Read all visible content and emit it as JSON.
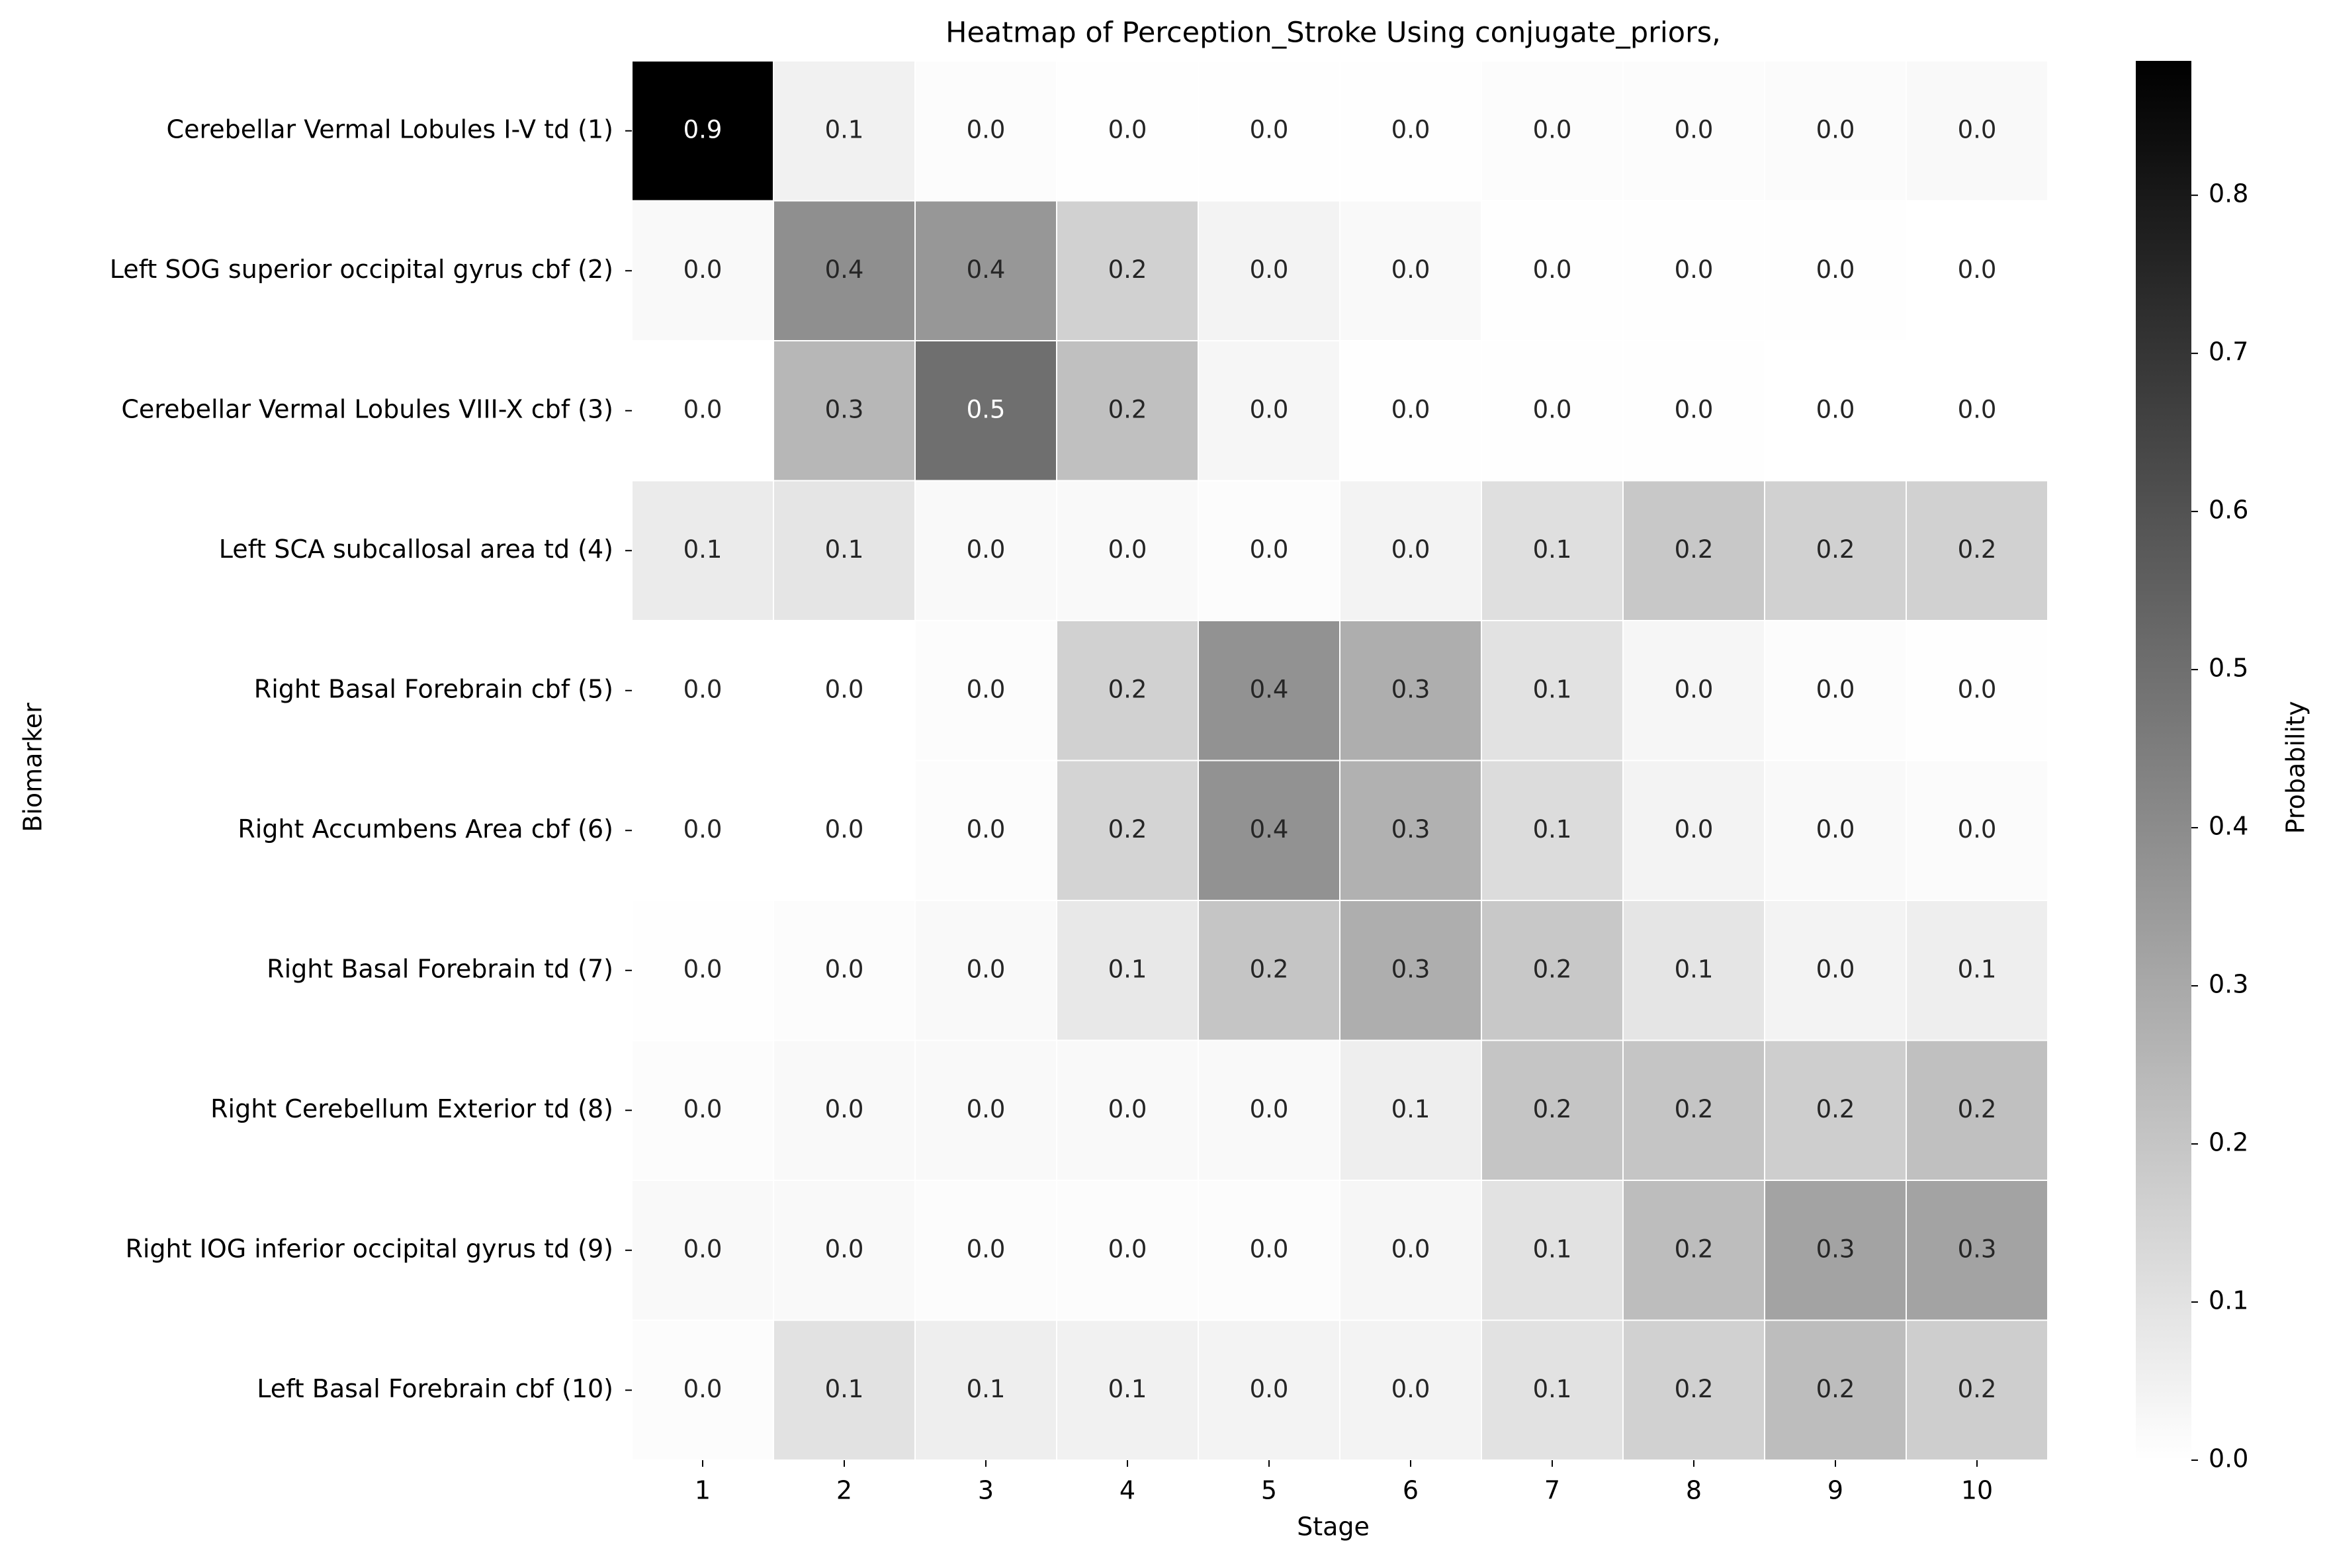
{
  "chart_data": {
    "type": "heatmap",
    "title": "Heatmap of Perception_Stroke Using conjugate_priors,",
    "xlabel": "Stage",
    "ylabel": "Biomarker",
    "colorbar_label": "Probability",
    "x_categories": [
      "1",
      "2",
      "3",
      "4",
      "5",
      "6",
      "7",
      "8",
      "9",
      "10"
    ],
    "y_categories": [
      "Cerebellar Vermal Lobules I-V td (1)",
      "Left SOG superior occipital gyrus cbf (2)",
      "Cerebellar Vermal Lobules VIII-X cbf (3)",
      "Left SCA subcallosal area td (4)",
      "Right Basal Forebrain cbf (5)",
      "Right Accumbens Area cbf (6)",
      "Right Basal Forebrain td (7)",
      "Right Cerebellum Exterior td (8)",
      "Right IOG inferior occipital gyrus td (9)",
      "Left Basal Forebrain cbf (10)"
    ],
    "values": [
      [
        0.885,
        0.05,
        0.01,
        0.005,
        0.004,
        0.005,
        0.01,
        0.01,
        0.015,
        0.02
      ],
      [
        0.02,
        0.39,
        0.36,
        0.16,
        0.04,
        0.02,
        0.005,
        0.003,
        0.002,
        0.001
      ],
      [
        0.0,
        0.25,
        0.5,
        0.22,
        0.03,
        0.005,
        0.003,
        0.002,
        0.001,
        0.001
      ],
      [
        0.07,
        0.09,
        0.02,
        0.02,
        0.01,
        0.04,
        0.11,
        0.19,
        0.16,
        0.16
      ],
      [
        0.0,
        0.0,
        0.01,
        0.16,
        0.38,
        0.28,
        0.1,
        0.03,
        0.01,
        0.005
      ],
      [
        0.0,
        0.0,
        0.01,
        0.15,
        0.38,
        0.27,
        0.12,
        0.04,
        0.02,
        0.015
      ],
      [
        0.005,
        0.01,
        0.02,
        0.08,
        0.2,
        0.28,
        0.19,
        0.09,
        0.04,
        0.06
      ],
      [
        0.01,
        0.02,
        0.02,
        0.02,
        0.02,
        0.06,
        0.2,
        0.2,
        0.17,
        0.22
      ],
      [
        0.02,
        0.02,
        0.01,
        0.01,
        0.01,
        0.03,
        0.1,
        0.23,
        0.32,
        0.32
      ],
      [
        0.01,
        0.1,
        0.06,
        0.05,
        0.04,
        0.04,
        0.1,
        0.16,
        0.23,
        0.17
      ]
    ],
    "cell_labels": [
      [
        "0.9",
        "0.1",
        "0.0",
        "0.0",
        "0.0",
        "0.0",
        "0.0",
        "0.0",
        "0.0",
        "0.0"
      ],
      [
        "0.0",
        "0.4",
        "0.4",
        "0.2",
        "0.0",
        "0.0",
        "0.0",
        "0.0",
        "0.0",
        "0.0"
      ],
      [
        "0.0",
        "0.3",
        "0.5",
        "0.2",
        "0.0",
        "0.0",
        "0.0",
        "0.0",
        "0.0",
        "0.0"
      ],
      [
        "0.1",
        "0.1",
        "0.0",
        "0.0",
        "0.0",
        "0.0",
        "0.1",
        "0.2",
        "0.2",
        "0.2"
      ],
      [
        "0.0",
        "0.0",
        "0.0",
        "0.2",
        "0.4",
        "0.3",
        "0.1",
        "0.0",
        "0.0",
        "0.0"
      ],
      [
        "0.0",
        "0.0",
        "0.0",
        "0.2",
        "0.4",
        "0.3",
        "0.1",
        "0.0",
        "0.0",
        "0.0"
      ],
      [
        "0.0",
        "0.0",
        "0.0",
        "0.1",
        "0.2",
        "0.3",
        "0.2",
        "0.1",
        "0.0",
        "0.1"
      ],
      [
        "0.0",
        "0.0",
        "0.0",
        "0.0",
        "0.0",
        "0.1",
        "0.2",
        "0.2",
        "0.2",
        "0.2"
      ],
      [
        "0.0",
        "0.0",
        "0.0",
        "0.0",
        "0.0",
        "0.0",
        "0.1",
        "0.2",
        "0.3",
        "0.3"
      ],
      [
        "0.0",
        "0.1",
        "0.1",
        "0.1",
        "0.0",
        "0.0",
        "0.1",
        "0.2",
        "0.2",
        "0.2"
      ]
    ],
    "colorbar_range": [
      0.0,
      0.885
    ],
    "colorbar_ticks": [
      0.0,
      0.1,
      0.2,
      0.3,
      0.4,
      0.5,
      0.6,
      0.7,
      0.8
    ],
    "colorbar_tick_labels": [
      "0.0",
      "0.1",
      "0.2",
      "0.3",
      "0.4",
      "0.5",
      "0.6",
      "0.7",
      "0.8"
    ],
    "colormap": "Greys",
    "colormap_low": "#ffffff",
    "colormap_high": "#000000",
    "cell_border_color": "#ffffff",
    "grid": false
  }
}
